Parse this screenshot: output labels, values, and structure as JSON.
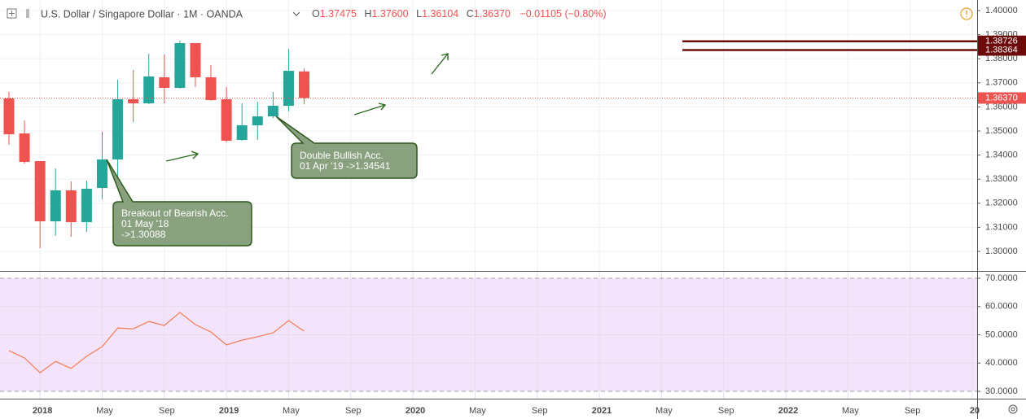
{
  "chart_data": {
    "type": "candlestick",
    "title": "U.S. Dollar / Singapore Dollar · 1M · OANDA",
    "header": {
      "open_label": "O",
      "open": "1.37475",
      "high_label": "H",
      "high": "1.37600",
      "low_label": "L",
      "low": "1.36104",
      "close_label": "C",
      "close": "1.36370",
      "change": "−0.01105 (−0.80%)"
    },
    "categories": [
      null,
      null,
      "2018",
      null,
      null,
      null,
      "May",
      null,
      null,
      null,
      "Sep",
      null,
      null,
      null,
      "2019",
      null,
      null,
      null,
      "May",
      null,
      null,
      null,
      "Sep",
      null,
      null,
      null,
      "2020",
      null,
      null,
      null,
      "May",
      null,
      null,
      null,
      "Sep",
      null,
      null,
      null,
      "2021",
      null,
      null,
      null,
      "May",
      null,
      null,
      null,
      "Sep",
      null,
      null,
      null,
      "2022",
      null,
      null,
      null,
      "May",
      null,
      null,
      null,
      "Sep",
      null,
      null,
      null,
      "20"
    ],
    "open": [
      1.36351,
      1.34899,
      1.3375,
      1.3125,
      1.32534,
      1.31216,
      1.32635,
      1.33818,
      1.36318,
      1.36149,
      1.3723,
      1.36791,
      1.38649,
      1.3723,
      1.36318,
      1.34628,
      1.35236,
      1.35608,
      1.36047,
      1.37475,
      null,
      null,
      null,
      null,
      null,
      null,
      null,
      null,
      null,
      null,
      null,
      null,
      null,
      null,
      null,
      null,
      null,
      null,
      null,
      null,
      null,
      null,
      null,
      null,
      null,
      null,
      null,
      null,
      null,
      null,
      null,
      null,
      null,
      null,
      null,
      null,
      null,
      null,
      null,
      null,
      null,
      null,
      null
    ],
    "high": [
      1.36622,
      1.35439,
      1.3375,
      1.33446,
      1.32905,
      1.32939,
      1.34966,
      1.37128,
      1.37534,
      1.3821,
      1.38176,
      1.3875,
      1.38649,
      1.37736,
      1.36824,
      1.36149,
      1.36216,
      1.36622,
      1.38412,
      1.376,
      null,
      null,
      null,
      null,
      null,
      null,
      null,
      null,
      null,
      null,
      null,
      null,
      null,
      null,
      null,
      null,
      null,
      null,
      null,
      null,
      null,
      null,
      null,
      null,
      null,
      null,
      null,
      null,
      null,
      null,
      null,
      null,
      null,
      null,
      null,
      null,
      null,
      null,
      null,
      null,
      null,
      null,
      null
    ],
    "low": [
      1.34426,
      1.33649,
      1.30135,
      1.30642,
      1.30608,
      1.30811,
      1.32162,
      1.33108,
      1.35372,
      1.36115,
      1.36149,
      1.36757,
      1.36824,
      1.3625,
      1.34527,
      1.34595,
      1.34628,
      1.3554,
      1.35811,
      1.36104,
      null,
      null,
      null,
      null,
      null,
      null,
      null,
      null,
      null,
      null,
      null,
      null,
      null,
      null,
      null,
      null,
      null,
      null,
      null,
      null,
      null,
      null,
      null,
      null,
      null,
      null,
      null,
      null,
      null,
      null,
      null,
      null,
      null,
      null,
      null,
      null,
      null,
      null,
      null,
      null,
      null,
      null,
      null
    ],
    "close": [
      1.34865,
      1.33716,
      1.3125,
      1.32534,
      1.31216,
      1.32601,
      1.33818,
      1.36318,
      1.36149,
      1.37264,
      1.36791,
      1.38649,
      1.3723,
      1.36284,
      1.34595,
      1.35236,
      1.35608,
      1.36047,
      1.375,
      1.3637,
      null,
      null,
      null,
      null,
      null,
      null,
      null,
      null,
      null,
      null,
      null,
      null,
      null,
      null,
      null,
      null,
      null,
      null,
      null,
      null,
      null,
      null,
      null,
      null,
      null,
      null,
      null,
      null,
      null,
      null,
      null,
      null,
      null,
      null,
      null,
      null,
      null,
      null,
      null,
      null,
      null,
      null,
      null
    ],
    "up_color": "#26a69a",
    "down_color": "#ef5350",
    "ylim": [
      1.2919,
      1.4044
    ],
    "yticks": [
      {
        "value": 1.3,
        "label": "1.30000"
      },
      {
        "value": 1.31,
        "label": "1.31000"
      },
      {
        "value": 1.32,
        "label": "1.32000"
      },
      {
        "value": 1.33,
        "label": "1.33000"
      },
      {
        "value": 1.34,
        "label": "1.34000"
      },
      {
        "value": 1.35,
        "label": "1.35000"
      },
      {
        "value": 1.36,
        "label": "1.36000"
      },
      {
        "value": 1.37,
        "label": "1.37000"
      },
      {
        "value": 1.38,
        "label": "1.38000"
      },
      {
        "value": 1.39,
        "label": "1.39000"
      },
      {
        "value": 1.4,
        "label": "1.40000"
      }
    ],
    "grid": true,
    "last_price": {
      "value": 1.3637,
      "label": "1.36370",
      "color": "#ef5350"
    },
    "levels": [
      {
        "value": 1.38726,
        "label": "1.38726",
        "color": "#6d0a0a"
      },
      {
        "value": 1.38364,
        "label": "1.38364",
        "color": "#6d0a0a"
      }
    ],
    "annotations": [
      {
        "lines": [
          "Breakout of Bearish Acc.",
          "01 May '18",
          "->1.30088"
        ]
      },
      {
        "lines": [
          "Double Bullish Acc.",
          "01 Apr '19 ->1.34541"
        ]
      }
    ],
    "indicator": {
      "type": "line",
      "color": "#f47b52",
      "band_color": "#f3e3fb",
      "values": [
        44.4,
        41.8,
        36.6,
        40.6,
        38.1,
        42.4,
        45.8,
        52.4,
        52.1,
        54.7,
        53.3,
        57.9,
        53.6,
        51.0,
        46.4,
        48.1,
        49.3,
        50.7,
        55.0,
        51.3,
        null,
        null,
        null,
        null,
        null,
        null,
        null,
        null,
        null,
        null,
        null,
        null,
        null,
        null,
        null,
        null,
        null,
        null,
        null,
        null,
        null,
        null,
        null,
        null,
        null,
        null,
        null,
        null,
        null,
        null,
        null,
        null,
        null,
        null,
        null,
        null,
        null,
        null,
        null,
        null,
        null,
        null,
        null
      ],
      "ylim": [
        27.41,
        72.59
      ],
      "yticks": [
        {
          "value": 30,
          "label": "30.0000"
        },
        {
          "value": 40,
          "label": "40.0000"
        },
        {
          "value": 50,
          "label": "50.0000"
        },
        {
          "value": 60,
          "label": "60.0000"
        },
        {
          "value": 70,
          "label": "70.0000"
        }
      ]
    }
  }
}
